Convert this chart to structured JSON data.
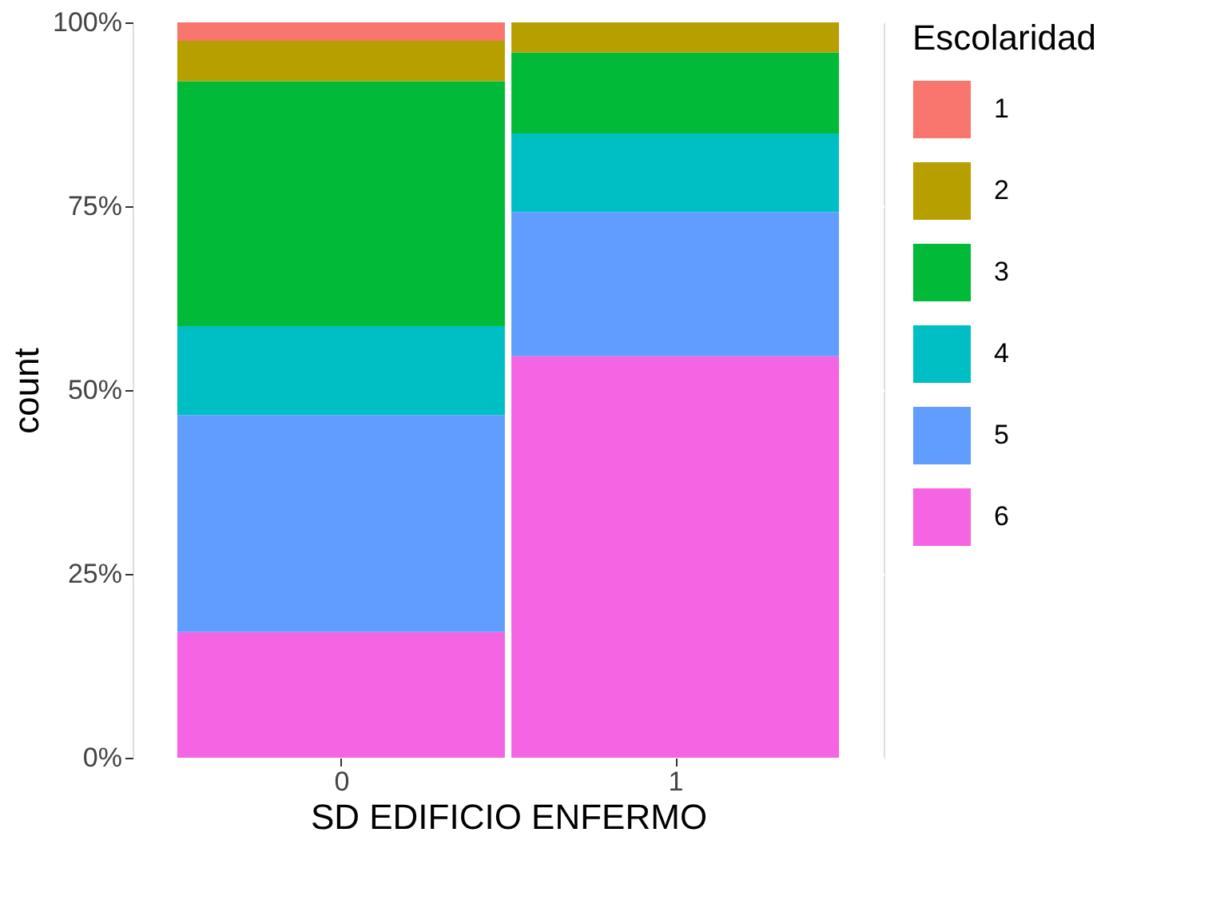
{
  "chart_data": {
    "type": "bar",
    "stacked": true,
    "xlabel": "SD EDIFICIO ENFERMO",
    "ylabel": "count",
    "legend_title": "Escolaridad",
    "categories": [
      "0",
      "1"
    ],
    "series": [
      {
        "name": "6",
        "color": "#f564e3",
        "values": [
          17.1,
          54.6
        ]
      },
      {
        "name": "5",
        "color": "#619cff",
        "values": [
          29.5,
          19.6
        ]
      },
      {
        "name": "4",
        "color": "#00bfc4",
        "values": [
          12.1,
          10.7
        ]
      },
      {
        "name": "3",
        "color": "#00ba38",
        "values": [
          33.3,
          11.0
        ]
      },
      {
        "name": "2",
        "color": "#b79f00",
        "values": [
          5.5,
          4.1
        ]
      },
      {
        "name": "1",
        "color": "#f8766d",
        "values": [
          2.5,
          0
        ]
      }
    ],
    "ylim": [
      0,
      100
    ],
    "yticks": [
      {
        "value": 0,
        "label": "0%"
      },
      {
        "value": 25,
        "label": "25%"
      },
      {
        "value": 50,
        "label": "50%"
      },
      {
        "value": 75,
        "label": "75%"
      },
      {
        "value": 100,
        "label": "100%"
      }
    ],
    "grid": true,
    "legend": "right"
  }
}
